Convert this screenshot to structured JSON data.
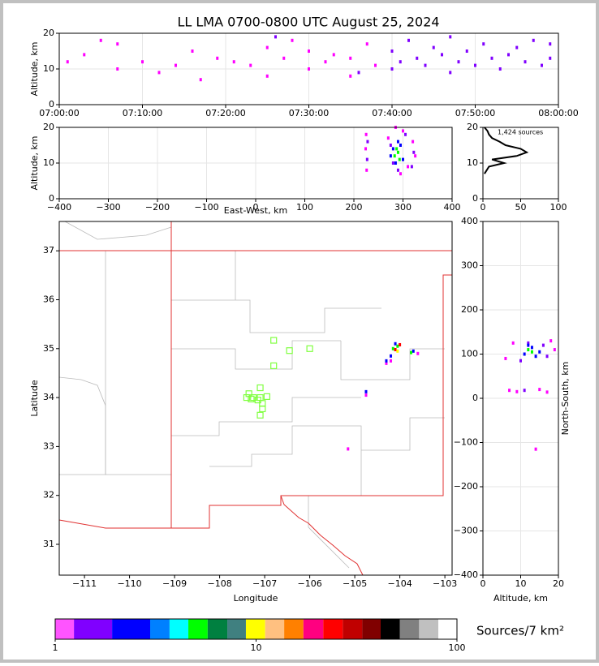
{
  "chart_data": [
    {
      "type": "scatter",
      "title": "LL LMA 0700-0800 UTC August 25, 2024",
      "ylabel": "Altitude, km",
      "xlim": [
        0,
        60
      ],
      "xticks": [
        {
          "value": 0,
          "label": "07:00:00"
        },
        {
          "value": 10,
          "label": "07:10:00"
        },
        {
          "value": 20,
          "label": "07:20:00"
        },
        {
          "value": 30,
          "label": "07:30:00"
        },
        {
          "value": 40,
          "label": "07:40:00"
        },
        {
          "value": 50,
          "label": "07:50:00"
        },
        {
          "value": 60,
          "label": "08:00:00"
        }
      ],
      "ylim": [
        0,
        20
      ],
      "yticks": [
        0,
        10,
        20
      ],
      "grid": true,
      "series": [
        {
          "color": "#ff00ff",
          "x": [
            1,
            3,
            5,
            7,
            7,
            10,
            12,
            14,
            16,
            17,
            19,
            21,
            23,
            25,
            25,
            27,
            28,
            30,
            30,
            32,
            33,
            35,
            35,
            37,
            38
          ],
          "y": [
            12,
            14,
            18,
            17,
            10,
            12,
            9,
            11,
            15,
            7,
            13,
            12,
            11,
            8,
            16,
            13,
            18,
            10,
            15,
            12,
            14,
            8,
            13,
            17,
            11
          ]
        },
        {
          "color": "#8000ff",
          "x": [
            40,
            40,
            41,
            42,
            43,
            44,
            45,
            46,
            47,
            47,
            48,
            49,
            50,
            51,
            52,
            53,
            54,
            55,
            56,
            57,
            58,
            59,
            59,
            26,
            36
          ],
          "y": [
            10,
            15,
            12,
            18,
            13,
            11,
            16,
            14,
            9,
            19,
            12,
            15,
            11,
            17,
            13,
            10,
            14,
            16,
            12,
            18,
            11,
            13,
            17,
            19,
            9
          ]
        }
      ]
    },
    {
      "type": "scatter",
      "ylabel": "Altitude, km",
      "xlabel": "East-West, km",
      "xlim": [
        -400,
        400
      ],
      "xticks": [
        {
          "value": -400,
          "label": "−400"
        },
        {
          "value": -300,
          "label": "−300"
        },
        {
          "value": -200,
          "label": "−200"
        },
        {
          "value": -100,
          "label": "−100"
        },
        0,
        100,
        200,
        300,
        400
      ],
      "ylim": [
        0,
        20
      ],
      "yticks": [
        0,
        10,
        20
      ],
      "grid": true,
      "series": [
        {
          "color": "#ff00ff",
          "x": [
            225,
            226,
            224,
            300,
            310,
            320,
            325,
            270,
            285,
            295
          ],
          "y": [
            18,
            8,
            14,
            19,
            9,
            16,
            12,
            17,
            20,
            7
          ]
        },
        {
          "color": "#8000ff",
          "x": [
            227,
            228,
            322,
            318,
            275,
            305,
            290,
            280
          ],
          "y": [
            11,
            16,
            13,
            9,
            15,
            18,
            8,
            10
          ]
        },
        {
          "color": "#0000ff",
          "x": [
            280,
            290,
            300,
            285,
            295,
            275
          ],
          "y": [
            14,
            16,
            11,
            10,
            15,
            12
          ]
        },
        {
          "color": "#00ff00",
          "x": [
            283,
            290,
            287,
            293
          ],
          "y": [
            12,
            13,
            14,
            11
          ]
        }
      ]
    },
    {
      "type": "line",
      "annotation": "1,424 sources",
      "xlim": [
        0,
        100
      ],
      "xticks": [
        0,
        50,
        100
      ],
      "ylim": [
        0,
        20
      ],
      "yticks": [
        0,
        10,
        20
      ],
      "grid": true,
      "series": [
        {
          "color": "#000000",
          "x": [
            2,
            5,
            8,
            28,
            12,
            45,
            58,
            50,
            30,
            22,
            12,
            8,
            6,
            2
          ],
          "y": [
            7,
            8,
            9,
            10,
            11,
            12,
            13,
            14,
            15,
            16,
            17,
            18,
            19,
            20
          ]
        }
      ]
    },
    {
      "type": "scatter",
      "xlabel": "Longitude",
      "ylabel": "Latitude",
      "xlim": [
        -111.56,
        -102.84
      ],
      "xticks": [
        {
          "value": -111,
          "label": "−111"
        },
        {
          "value": -110,
          "label": "−110"
        },
        {
          "value": -109,
          "label": "−109"
        },
        {
          "value": -108,
          "label": "−108"
        },
        {
          "value": -107,
          "label": "−107"
        },
        {
          "value": -106,
          "label": "−106"
        },
        {
          "value": -105,
          "label": "−105"
        },
        {
          "value": -104,
          "label": "−104"
        },
        {
          "value": -103,
          "label": "−103"
        }
      ],
      "ylim": [
        30.37,
        37.6
      ],
      "yticks": [
        31,
        32,
        33,
        34,
        35,
        36,
        37
      ],
      "grid": false,
      "series": [
        {
          "color": "#80ff40",
          "marker": "square-open",
          "x": [
            -106.8,
            -106.45,
            -106,
            -106.8,
            -107.1,
            -107.35,
            -107.4,
            -107.25,
            -107.1,
            -106.95,
            -107.15,
            -107.05,
            -107.05,
            -107.1,
            -107.3
          ],
          "y": [
            35.17,
            34.96,
            35,
            34.65,
            34.2,
            34.08,
            34,
            34,
            34,
            34.02,
            33.95,
            33.88,
            33.77,
            33.64,
            33.97
          ]
        },
        {
          "color": "#ff00ff",
          "x": [
            -104.2,
            -103.6,
            -104.3,
            -104.75,
            -105.15
          ],
          "y": [
            34.75,
            34.9,
            34.7,
            34.05,
            32.95
          ]
        },
        {
          "color": "#0000ff",
          "x": [
            -104.1,
            -104.2,
            -103.7,
            -104.75,
            -104.3
          ],
          "y": [
            35.1,
            34.85,
            34.95,
            34.12,
            34.75
          ]
        },
        {
          "color": "#00ff00",
          "x": [
            -104.15,
            -104.05,
            -103.75
          ],
          "y": [
            35.0,
            35.05,
            34.92
          ]
        },
        {
          "color": "#ff0000",
          "x": [
            -104.0,
            -104.1
          ],
          "y": [
            35.08,
            34.98
          ]
        },
        {
          "color": "#ffff00",
          "x": [
            -104.05
          ],
          "y": [
            34.95
          ]
        }
      ]
    },
    {
      "type": "scatter",
      "xlabel": "Altitude, km",
      "ylabel": "North-South, km",
      "xlim": [
        0,
        20
      ],
      "xticks": [
        0,
        10,
        20
      ],
      "ylim": [
        -400,
        400
      ],
      "yticks": [
        {
          "value": -400,
          "label": "−400"
        },
        {
          "value": -300,
          "label": "−300"
        },
        {
          "value": -200,
          "label": "−200"
        },
        {
          "value": -100,
          "label": "−100"
        },
        0,
        100,
        200,
        300,
        400
      ],
      "grid": true,
      "series": [
        {
          "color": "#ff00ff",
          "x": [
            6,
            8,
            18,
            19,
            7,
            9,
            15,
            17,
            14
          ],
          "y": [
            90,
            125,
            130,
            110,
            18,
            15,
            20,
            14,
            -115
          ]
        },
        {
          "color": "#8000ff",
          "x": [
            10,
            12,
            16,
            17,
            11
          ],
          "y": [
            85,
            125,
            120,
            95,
            18
          ]
        },
        {
          "color": "#0000ff",
          "x": [
            11,
            13,
            15,
            12,
            14
          ],
          "y": [
            100,
            115,
            105,
            120,
            95
          ]
        },
        {
          "color": "#00ff00",
          "x": [
            12,
            13
          ],
          "y": [
            110,
            105
          ]
        }
      ]
    },
    {
      "type": "colorbar",
      "label": "Sources/7 km²",
      "log": true,
      "xlim": [
        1,
        100
      ],
      "xticks": [
        1,
        10,
        100
      ],
      "colors": [
        "#ff54ff",
        "#8000ff",
        "#0000ff",
        "#0080ff",
        "#00ffff",
        "#00ff00",
        "#008040",
        "#408080",
        "#ffff00",
        "#ffc080",
        "#ff8000",
        "#ff0080",
        "#ff0000",
        "#c00000",
        "#800000",
        "#000000",
        "#808080",
        "#c0c0c0",
        "#ffffff"
      ],
      "bounds": [
        1,
        1.24,
        1.92,
        2.97,
        3.71,
        4.6,
        5.74,
        7.19,
        8.9,
        11.1,
        13.8,
        17.2,
        21.6,
        27,
        33.8,
        41.7,
        51.9,
        64.8,
        80.8,
        100
      ]
    }
  ]
}
